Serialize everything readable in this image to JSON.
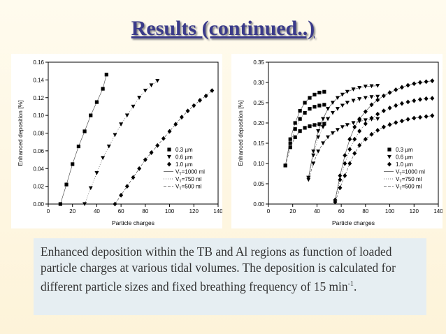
{
  "slide": {
    "title": "Results (continued..)",
    "caption": {
      "text": "Enhanced deposition within the TB and Al regions as function of loaded particle charges at various tidal volumes. The deposition is calculated for different particle sizes and fixed breathing frequency of 15 min",
      "superscript": "-1",
      "end": "."
    }
  },
  "chart_data": [
    {
      "type": "scatter",
      "xlabel": "Particle charges",
      "ylabel": "Enhanced deposition [%]",
      "xlim": [
        0,
        140
      ],
      "ylim": [
        0,
        0.16
      ],
      "xticks": [
        "0",
        "20",
        "40",
        "60",
        "80",
        "100",
        "120",
        "140"
      ],
      "yticks": [
        "0.00",
        "0.02",
        "0.04",
        "0.06",
        "0.08",
        "0.10",
        "0.12",
        "0.14",
        "0.16"
      ],
      "legend_position": "bottom-right",
      "legend_markers": [
        "0.3 µm",
        "0.6 µm",
        "1.0 µm"
      ],
      "legend_lines": [
        {
          "label": "VT=1000 ml",
          "sub": "T",
          "style": "solid"
        },
        {
          "label": "VT=750 ml",
          "sub": "T",
          "style": "dotted"
        },
        {
          "label": "VT=500 ml",
          "sub": "T",
          "style": "dashed"
        }
      ],
      "series": [
        {
          "name": "0.3 µm",
          "marker": "square",
          "points": [
            [
              10,
              0
            ],
            [
              15,
              0.022
            ],
            [
              20,
              0.045
            ],
            [
              25,
              0.065
            ],
            [
              30,
              0.082
            ],
            [
              35,
              0.1
            ],
            [
              40,
              0.115
            ],
            [
              45,
              0.13
            ],
            [
              48,
              0.146
            ]
          ]
        },
        {
          "name": "0.6 µm",
          "marker": "triangle-down",
          "points": [
            [
              30,
              0
            ],
            [
              35,
              0.018
            ],
            [
              40,
              0.035
            ],
            [
              45,
              0.052
            ],
            [
              50,
              0.065
            ],
            [
              55,
              0.078
            ],
            [
              60,
              0.09
            ],
            [
              65,
              0.1
            ],
            [
              70,
              0.11
            ],
            [
              75,
              0.12
            ],
            [
              80,
              0.128
            ],
            [
              85,
              0.134
            ],
            [
              90,
              0.139
            ]
          ]
        },
        {
          "name": "1.0 µm",
          "marker": "diamond",
          "points": [
            [
              55,
              0
            ],
            [
              60,
              0.01
            ],
            [
              65,
              0.02
            ],
            [
              70,
              0.03
            ],
            [
              75,
              0.04
            ],
            [
              80,
              0.05
            ],
            [
              85,
              0.058
            ],
            [
              90,
              0.066
            ],
            [
              95,
              0.074
            ],
            [
              100,
              0.082
            ],
            [
              105,
              0.09
            ],
            [
              110,
              0.098
            ],
            [
              115,
              0.105
            ],
            [
              120,
              0.111
            ],
            [
              125,
              0.117
            ],
            [
              130,
              0.122
            ],
            [
              135,
              0.128
            ]
          ]
        }
      ]
    },
    {
      "type": "scatter",
      "xlabel": "Particle charges",
      "ylabel": "Enhanced deposition [%]",
      "xlim": [
        0,
        140
      ],
      "ylim": [
        0,
        0.35
      ],
      "xticks": [
        "0",
        "20",
        "40",
        "60",
        "80",
        "100",
        "120",
        "140"
      ],
      "yticks": [
        "0.00",
        "0.05",
        "0.10",
        "0.15",
        "0.20",
        "0.25",
        "0.30",
        "0.35"
      ],
      "legend_position": "bottom-right",
      "legend_markers": [
        "0.3 µm",
        "0.6 µm",
        "1.0 µm"
      ],
      "legend_lines": [
        {
          "label": "VT=1000 ml",
          "sub": "T",
          "style": "solid"
        },
        {
          "label": "VT=750 ml",
          "sub": "T",
          "style": "dotted"
        },
        {
          "label": "VT=500 ml",
          "sub": "T",
          "style": "dashed"
        }
      ],
      "series": [
        {
          "name": "0.3 µm · VT=1000 ml",
          "marker": "square",
          "points": [
            [
              14,
              0.095
            ],
            [
              18,
              0.16
            ],
            [
              22,
              0.2
            ],
            [
              26,
              0.23
            ],
            [
              30,
              0.25
            ],
            [
              34,
              0.262
            ],
            [
              38,
              0.27
            ],
            [
              42,
              0.275
            ],
            [
              46,
              0.277
            ]
          ]
        },
        {
          "name": "0.3 µm · VT=750 ml",
          "marker": "square",
          "points": [
            [
              14,
              0.095
            ],
            [
              18,
              0.15
            ],
            [
              22,
              0.185
            ],
            [
              26,
              0.21
            ],
            [
              30,
              0.225
            ],
            [
              34,
              0.235
            ],
            [
              38,
              0.24
            ],
            [
              42,
              0.243
            ],
            [
              46,
              0.245
            ]
          ]
        },
        {
          "name": "0.3 µm · VT=500 ml",
          "marker": "square",
          "points": [
            [
              14,
              0.095
            ],
            [
              18,
              0.14
            ],
            [
              22,
              0.165
            ],
            [
              26,
              0.18
            ],
            [
              30,
              0.188
            ],
            [
              34,
              0.192
            ],
            [
              38,
              0.195
            ],
            [
              42,
              0.197
            ],
            [
              46,
              0.198
            ]
          ]
        },
        {
          "name": "0.6 µm · VT=1000 ml",
          "marker": "triangle-down",
          "points": [
            [
              33,
              0.065
            ],
            [
              37,
              0.13
            ],
            [
              41,
              0.18
            ],
            [
              45,
              0.21
            ],
            [
              49,
              0.235
            ],
            [
              53,
              0.25
            ],
            [
              57,
              0.262
            ],
            [
              61,
              0.27
            ],
            [
              65,
              0.277
            ],
            [
              70,
              0.283
            ],
            [
              75,
              0.287
            ],
            [
              80,
              0.29
            ],
            [
              85,
              0.291
            ],
            [
              90,
              0.292
            ]
          ]
        },
        {
          "name": "0.6 µm · VT=750 ml",
          "marker": "triangle-down",
          "points": [
            [
              33,
              0.065
            ],
            [
              37,
              0.12
            ],
            [
              41,
              0.165
            ],
            [
              45,
              0.19
            ],
            [
              49,
              0.21
            ],
            [
              53,
              0.225
            ],
            [
              57,
              0.235
            ],
            [
              61,
              0.243
            ],
            [
              65,
              0.25
            ],
            [
              70,
              0.255
            ],
            [
              75,
              0.259
            ],
            [
              80,
              0.262
            ],
            [
              85,
              0.264
            ],
            [
              90,
              0.265
            ]
          ]
        },
        {
          "name": "0.6 µm · VT=500 ml",
          "marker": "triangle-down",
          "points": [
            [
              33,
              0.06
            ],
            [
              37,
              0.1
            ],
            [
              41,
              0.13
            ],
            [
              45,
              0.15
            ],
            [
              49,
              0.165
            ],
            [
              53,
              0.175
            ],
            [
              57,
              0.183
            ],
            [
              61,
              0.19
            ],
            [
              65,
              0.195
            ],
            [
              70,
              0.2
            ],
            [
              75,
              0.204
            ],
            [
              80,
              0.207
            ],
            [
              85,
              0.209
            ],
            [
              90,
              0.21
            ]
          ]
        },
        {
          "name": "1.0 µm · VT=1000 ml",
          "marker": "diamond",
          "points": [
            [
              55,
              0.01
            ],
            [
              59,
              0.07
            ],
            [
              63,
              0.12
            ],
            [
              67,
              0.16
            ],
            [
              71,
              0.19
            ],
            [
              75,
              0.21
            ],
            [
              80,
              0.228
            ],
            [
              85,
              0.245
            ],
            [
              90,
              0.257
            ],
            [
              95,
              0.267
            ],
            [
              100,
              0.275
            ],
            [
              105,
              0.282
            ],
            [
              110,
              0.288
            ],
            [
              115,
              0.293
            ],
            [
              120,
              0.297
            ],
            [
              125,
              0.3
            ],
            [
              130,
              0.302
            ],
            [
              135,
              0.304
            ]
          ]
        },
        {
          "name": "1.0 µm · VT=750 ml",
          "marker": "diamond",
          "points": [
            [
              55,
              0.01
            ],
            [
              59,
              0.06
            ],
            [
              63,
              0.1
            ],
            [
              67,
              0.135
            ],
            [
              71,
              0.16
            ],
            [
              75,
              0.18
            ],
            [
              80,
              0.198
            ],
            [
              85,
              0.212
            ],
            [
              90,
              0.222
            ],
            [
              95,
              0.23
            ],
            [
              100,
              0.237
            ],
            [
              105,
              0.243
            ],
            [
              110,
              0.248
            ],
            [
              115,
              0.252
            ],
            [
              120,
              0.255
            ],
            [
              125,
              0.258
            ],
            [
              130,
              0.26
            ],
            [
              135,
              0.261
            ]
          ]
        },
        {
          "name": "1.0 µm · VT=500 ml",
          "marker": "diamond",
          "points": [
            [
              55,
              0.005
            ],
            [
              59,
              0.04
            ],
            [
              63,
              0.07
            ],
            [
              67,
              0.1
            ],
            [
              71,
              0.125
            ],
            [
              75,
              0.145
            ],
            [
              80,
              0.16
            ],
            [
              85,
              0.172
            ],
            [
              90,
              0.182
            ],
            [
              95,
              0.19
            ],
            [
              100,
              0.196
            ],
            [
              105,
              0.201
            ],
            [
              110,
              0.205
            ],
            [
              115,
              0.209
            ],
            [
              120,
              0.212
            ],
            [
              125,
              0.214
            ],
            [
              130,
              0.216
            ],
            [
              135,
              0.218
            ]
          ]
        }
      ]
    }
  ]
}
